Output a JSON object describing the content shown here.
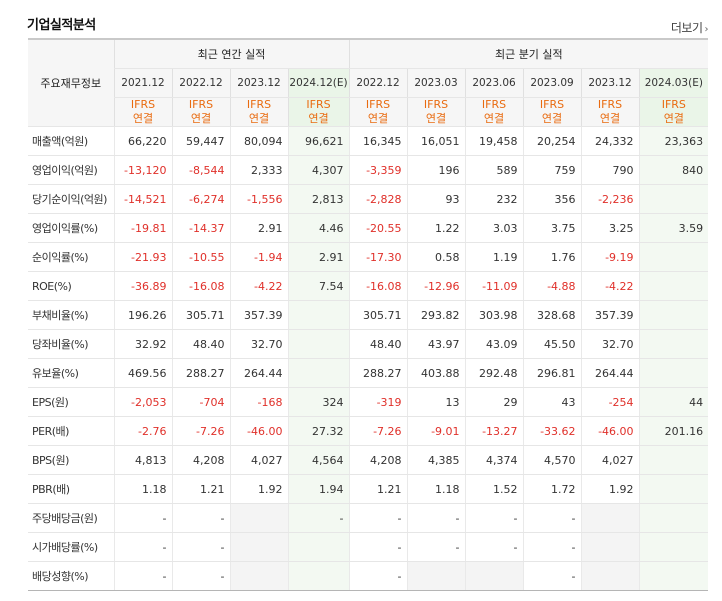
{
  "title": "기업실적분석",
  "more_label": "더보기",
  "main_header": "주요재무정보",
  "annual_header": "최근 연간 실적",
  "quarter_header": "최근 분기 실적",
  "columns": [
    "2021.12",
    "2022.12",
    "2023.12",
    "2024.12(E)",
    "2022.12",
    "2023.03",
    "2023.06",
    "2023.09",
    "2023.12",
    "2024.03(E)"
  ],
  "basis_top": "IFRS",
  "basis_bottom": "연결",
  "rows": [
    {
      "label": "매출액(억원)",
      "values": [
        "66,220",
        "59,447",
        "80,094",
        "96,621",
        "16,345",
        "16,051",
        "19,458",
        "20,254",
        "24,332",
        "23,363"
      ]
    },
    {
      "label": "영업이익(억원)",
      "values": [
        "-13,120",
        "-8,544",
        "2,333",
        "4,307",
        "-3,359",
        "196",
        "589",
        "759",
        "790",
        "840"
      ]
    },
    {
      "label": "당기순이익(억원)",
      "values": [
        "-14,521",
        "-6,274",
        "-1,556",
        "2,813",
        "-2,828",
        "93",
        "232",
        "356",
        "-2,236",
        ""
      ]
    },
    {
      "label": "영업이익률(%)",
      "values": [
        "-19.81",
        "-14.37",
        "2.91",
        "4.46",
        "-20.55",
        "1.22",
        "3.03",
        "3.75",
        "3.25",
        "3.59"
      ]
    },
    {
      "label": "순이익률(%)",
      "values": [
        "-21.93",
        "-10.55",
        "-1.94",
        "2.91",
        "-17.30",
        "0.58",
        "1.19",
        "1.76",
        "-9.19",
        ""
      ]
    },
    {
      "label": "ROE(%)",
      "values": [
        "-36.89",
        "-16.08",
        "-4.22",
        "7.54",
        "-16.08",
        "-12.96",
        "-11.09",
        "-4.88",
        "-4.22",
        ""
      ]
    },
    {
      "label": "부채비율(%)",
      "values": [
        "196.26",
        "305.71",
        "357.39",
        "",
        "305.71",
        "293.82",
        "303.98",
        "328.68",
        "357.39",
        ""
      ]
    },
    {
      "label": "당좌비율(%)",
      "values": [
        "32.92",
        "48.40",
        "32.70",
        "",
        "48.40",
        "43.97",
        "43.09",
        "45.50",
        "32.70",
        ""
      ]
    },
    {
      "label": "유보율(%)",
      "values": [
        "469.56",
        "288.27",
        "264.44",
        "",
        "288.27",
        "403.88",
        "292.48",
        "296.81",
        "264.44",
        ""
      ]
    },
    {
      "label": "EPS(원)",
      "values": [
        "-2,053",
        "-704",
        "-168",
        "324",
        "-319",
        "13",
        "29",
        "43",
        "-254",
        "44"
      ]
    },
    {
      "label": "PER(배)",
      "values": [
        "-2.76",
        "-7.26",
        "-46.00",
        "27.32",
        "-7.26",
        "-9.01",
        "-13.27",
        "-33.62",
        "-46.00",
        "201.16"
      ]
    },
    {
      "label": "BPS(원)",
      "values": [
        "4,813",
        "4,208",
        "4,027",
        "4,564",
        "4,208",
        "4,385",
        "4,374",
        "4,570",
        "4,027",
        ""
      ]
    },
    {
      "label": "PBR(배)",
      "values": [
        "1.18",
        "1.21",
        "1.92",
        "1.94",
        "1.21",
        "1.18",
        "1.52",
        "1.72",
        "1.92",
        ""
      ]
    },
    {
      "label": "주당배당금(원)",
      "values": [
        "-",
        "-",
        "",
        "-",
        "-",
        "-",
        "-",
        "-",
        "",
        ""
      ]
    },
    {
      "label": "시가배당률(%)",
      "values": [
        "-",
        "-",
        "",
        "",
        "-",
        "-",
        "-",
        "-",
        "",
        ""
      ]
    },
    {
      "label": "배당성향(%)",
      "values": [
        "-",
        "-",
        "",
        "",
        "-",
        "",
        "",
        "-",
        "",
        ""
      ]
    }
  ],
  "colors": {
    "negative": "#e0302a",
    "basis": "#e96b10",
    "estimate_bg": "#f3f9f2",
    "empty_bg": "#f4f4f4"
  }
}
